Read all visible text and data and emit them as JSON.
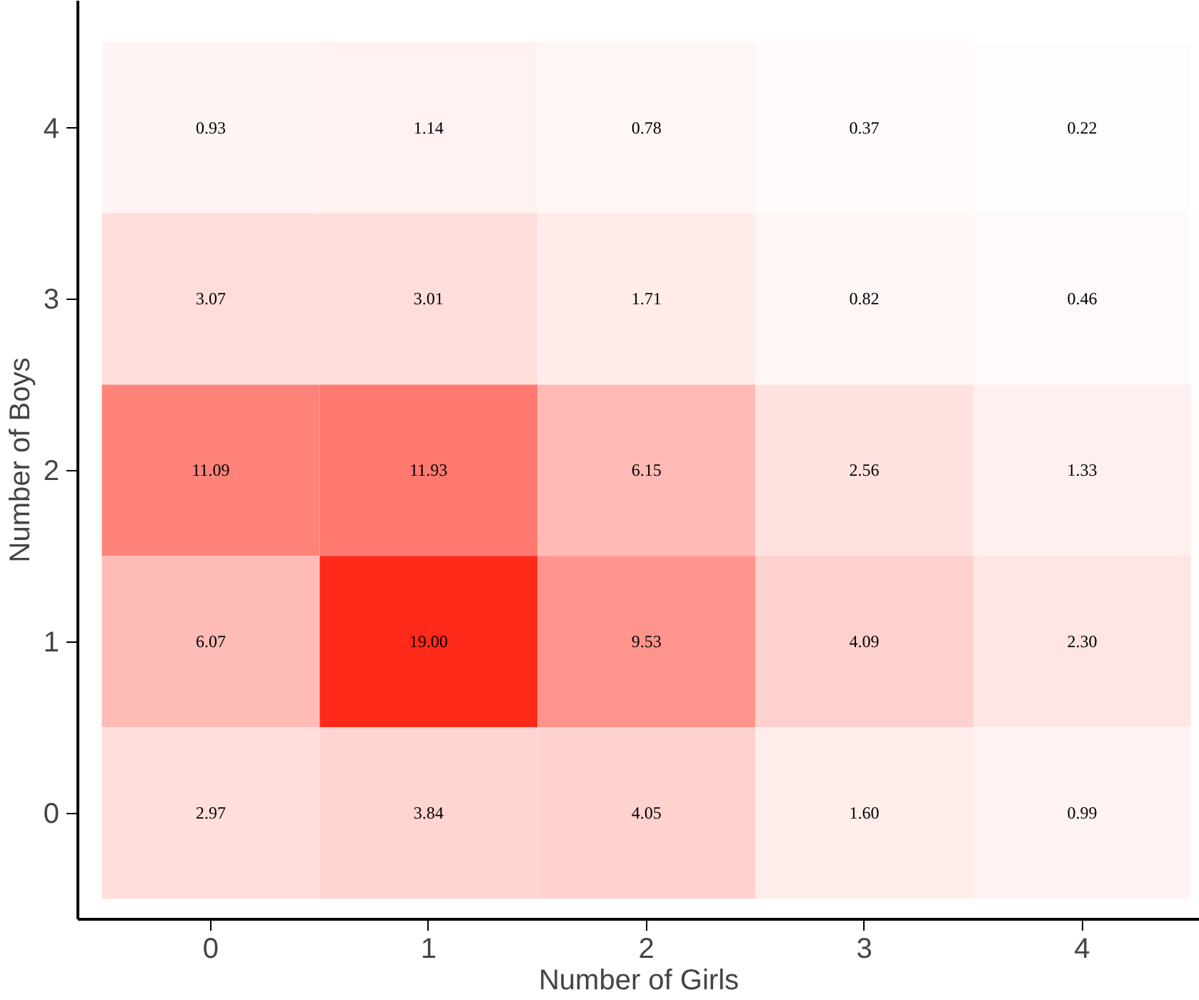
{
  "chart_data": {
    "type": "heatmap",
    "xlabel": "Number of Girls",
    "ylabel": "Number of Boys",
    "categories": [
      "0",
      "1",
      "2",
      "3",
      "4"
    ],
    "y_categories": [
      "4",
      "3",
      "2",
      "1",
      "0"
    ],
    "cells": [
      [
        0.93,
        1.14,
        0.78,
        0.37,
        0.22
      ],
      [
        3.07,
        3.01,
        1.71,
        0.82,
        0.46
      ],
      [
        11.09,
        11.93,
        6.15,
        2.56,
        1.33
      ],
      [
        6.07,
        19.0,
        9.53,
        4.09,
        2.3
      ],
      [
        2.97,
        3.84,
        4.05,
        1.6,
        0.99
      ]
    ],
    "cell_labels": [
      [
        "0.93",
        "1.14",
        "0.78",
        "0.37",
        "0.22"
      ],
      [
        "3.07",
        "3.01",
        "1.71",
        "0.82",
        "0.46"
      ],
      [
        "11.09",
        "11.93",
        "6.15",
        "2.56",
        "1.33"
      ],
      [
        "6.07",
        "19.00",
        "9.53",
        "4.09",
        "2.30"
      ],
      [
        "2.97",
        "3.84",
        "4.05",
        "1.60",
        "0.99"
      ]
    ],
    "data_labels": true,
    "color": "#ff2a1a",
    "grid": false
  }
}
